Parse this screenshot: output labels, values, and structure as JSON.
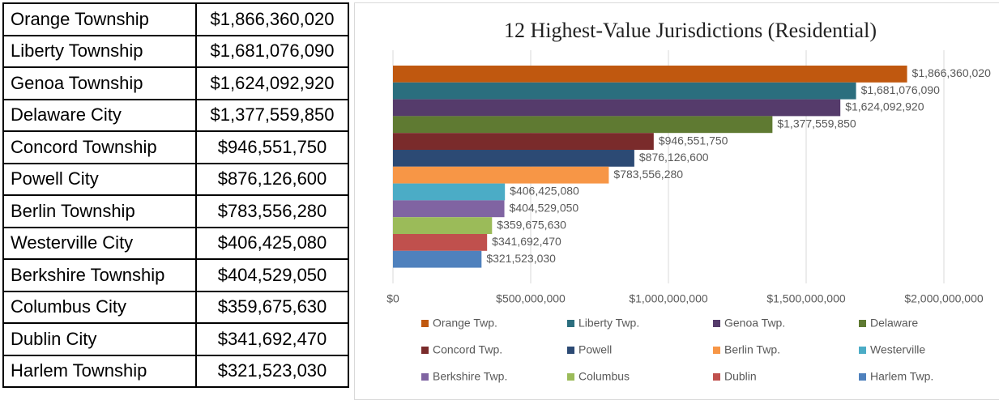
{
  "table": {
    "rows": [
      [
        "Orange Township",
        "$1,866,360,020"
      ],
      [
        "Liberty Township",
        "$1,681,076,090"
      ],
      [
        "Genoa Township",
        "$1,624,092,920"
      ],
      [
        "Delaware City",
        "$1,377,559,850"
      ],
      [
        "Concord Township",
        "$946,551,750"
      ],
      [
        "Powell City",
        "$876,126,600"
      ],
      [
        "Berlin Township",
        "$783,556,280"
      ],
      [
        "Westerville City",
        "$406,425,080"
      ],
      [
        "Berkshire Township",
        "$404,529,050"
      ],
      [
        "Columbus City",
        "$359,675,630"
      ],
      [
        "Dublin City",
        "$341,692,470"
      ],
      [
        "Harlem Township",
        "$321,523,030"
      ]
    ]
  },
  "chart_data": {
    "type": "bar",
    "orientation": "horizontal",
    "title": "12 Highest-Value Jurisdictions (Residential)",
    "xlim": [
      0,
      2000000000
    ],
    "xticks": [
      {
        "value": 0,
        "label": "$0"
      },
      {
        "value": 500000000,
        "label": "$500,000,000"
      },
      {
        "value": 1000000000,
        "label": "$1,000,000,000"
      },
      {
        "value": 1500000000,
        "label": "$1,500,000,000"
      },
      {
        "value": 2000000000,
        "label": "$2,000,000,000"
      }
    ],
    "grid": true,
    "legend": "bottom",
    "series": [
      {
        "name": "Orange Twp.",
        "color": "#c0580f",
        "values": [
          1866360020
        ],
        "value_labels": [
          "$1,866,360,020"
        ]
      },
      {
        "name": "Liberty Twp.",
        "color": "#2b6e7e",
        "values": [
          1681076090
        ],
        "value_labels": [
          "$1,681,076,090"
        ]
      },
      {
        "name": "Genoa Twp.",
        "color": "#553b6b",
        "values": [
          1624092920
        ],
        "value_labels": [
          "$1,624,092,920"
        ]
      },
      {
        "name": "Delaware",
        "color": "#5f7a32",
        "values": [
          1377559850
        ],
        "value_labels": [
          "$1,377,559,850"
        ]
      },
      {
        "name": "Concord Twp.",
        "color": "#7a2b2b",
        "values": [
          946551750
        ],
        "value_labels": [
          "$946,551,750"
        ]
      },
      {
        "name": "Powell",
        "color": "#2c4a74",
        "values": [
          876126600
        ],
        "value_labels": [
          "$876,126,600"
        ]
      },
      {
        "name": "Berlin Twp.",
        "color": "#f79646",
        "values": [
          783556280
        ],
        "value_labels": [
          "$783,556,280"
        ]
      },
      {
        "name": "Westerville",
        "color": "#4bacc6",
        "values": [
          406425080
        ],
        "value_labels": [
          "$406,425,080"
        ]
      },
      {
        "name": "Berkshire Twp.",
        "color": "#8064a2",
        "values": [
          404529050
        ],
        "value_labels": [
          "$404,529,050"
        ]
      },
      {
        "name": "Columbus",
        "color": "#9bbb59",
        "values": [
          359675630
        ],
        "value_labels": [
          "$359,675,630"
        ]
      },
      {
        "name": "Dublin",
        "color": "#c0504d",
        "values": [
          341692470
        ],
        "value_labels": [
          "$341,692,470"
        ]
      },
      {
        "name": "Harlem Twp.",
        "color": "#4f81bd",
        "values": [
          321523030
        ],
        "value_labels": [
          "$321,523,030"
        ]
      }
    ]
  }
}
